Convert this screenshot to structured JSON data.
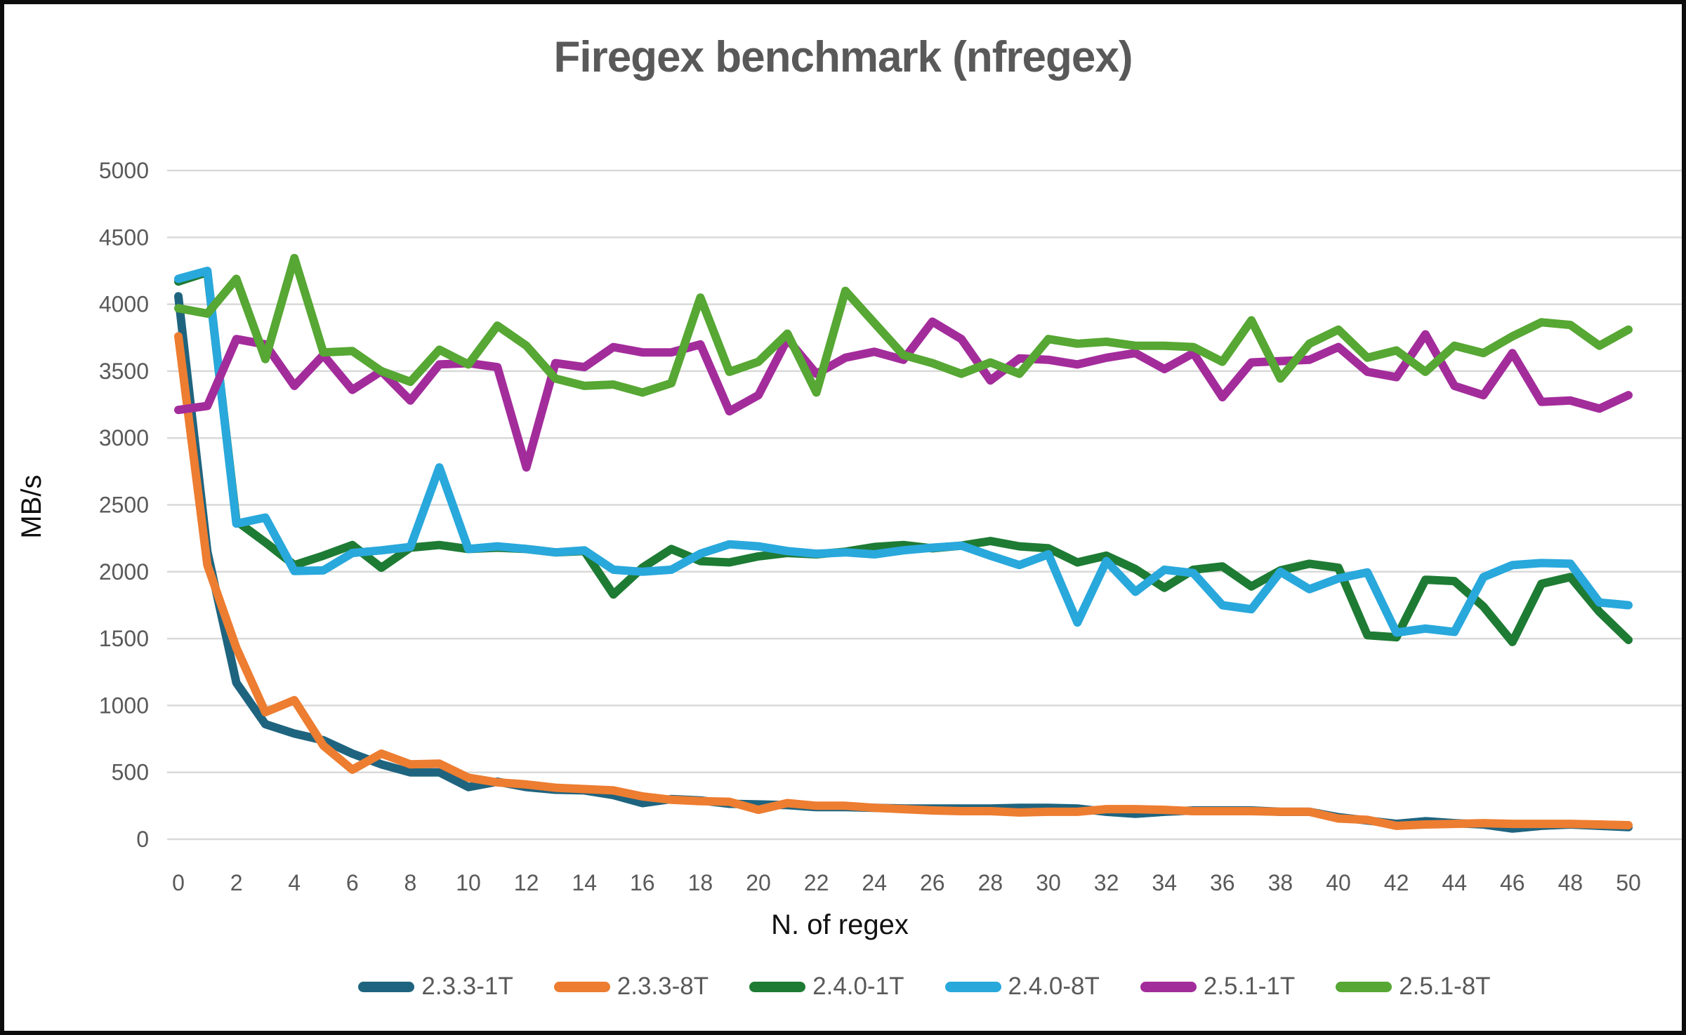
{
  "title": "Firegex benchmark (nfregex)",
  "chart_data": {
    "type": "line",
    "title": "Firegex benchmark (nfregex)",
    "xlabel": "N. of regex",
    "ylabel": "MB/s",
    "xlim": [
      0,
      50
    ],
    "x_tick_step": 2,
    "ylim": [
      0,
      5000
    ],
    "y_tick_step": 500,
    "grid": true,
    "legend_position": "bottom",
    "grid_color": "#D9D9D9",
    "tick_label_color": "#595959",
    "axis_title_color": "#111111",
    "x": [
      0,
      1,
      2,
      3,
      4,
      5,
      6,
      7,
      8,
      9,
      10,
      11,
      12,
      13,
      14,
      15,
      16,
      17,
      18,
      19,
      20,
      21,
      22,
      23,
      24,
      25,
      26,
      27,
      28,
      29,
      30,
      31,
      32,
      33,
      34,
      35,
      36,
      37,
      38,
      39,
      40,
      41,
      42,
      43,
      44,
      45,
      46,
      47,
      48,
      49,
      50
    ],
    "series": [
      {
        "name": "2.3.3-1T",
        "color": "#1F647F",
        "values": [
          4060,
          2150,
          1170,
          860,
          790,
          740,
          640,
          560,
          500,
          500,
          390,
          430,
          390,
          370,
          365,
          330,
          270,
          300,
          290,
          265,
          260,
          255,
          240,
          240,
          235,
          230,
          230,
          230,
          230,
          235,
          235,
          230,
          205,
          190,
          205,
          215,
          215,
          215,
          205,
          205,
          165,
          140,
          115,
          135,
          120,
          110,
          80,
          100,
          110,
          100,
          90
        ]
      },
      {
        "name": "2.3.3-8T",
        "color": "#ED7D31",
        "values": [
          3760,
          2050,
          1430,
          950,
          1040,
          700,
          520,
          640,
          560,
          565,
          460,
          425,
          410,
          385,
          375,
          365,
          320,
          295,
          285,
          280,
          220,
          270,
          250,
          250,
          235,
          225,
          215,
          210,
          210,
          200,
          205,
          205,
          225,
          225,
          220,
          210,
          210,
          210,
          205,
          205,
          155,
          145,
          100,
          110,
          115,
          120,
          115,
          115,
          115,
          110,
          105
        ]
      },
      {
        "name": "2.4.0-1T",
        "color": "#1E7B34",
        "values": [
          4170,
          4240,
          2380,
          2220,
          2050,
          2120,
          2200,
          2030,
          2180,
          2200,
          2170,
          2180,
          2170,
          2145,
          2155,
          1830,
          2030,
          2170,
          2080,
          2070,
          2115,
          2140,
          2130,
          2150,
          2185,
          2200,
          2175,
          2195,
          2230,
          2190,
          2175,
          2070,
          2120,
          2020,
          1880,
          2015,
          2040,
          1890,
          2010,
          2060,
          2030,
          1525,
          1510,
          1940,
          1930,
          1740,
          1475,
          1910,
          1960,
          1700,
          1490
        ]
      },
      {
        "name": "2.4.0-8T",
        "color": "#29A8DC",
        "values": [
          4190,
          4250,
          2360,
          2405,
          2005,
          2010,
          2140,
          2160,
          2185,
          2780,
          2170,
          2190,
          2170,
          2145,
          2160,
          2015,
          2000,
          2015,
          2135,
          2205,
          2190,
          2155,
          2135,
          2145,
          2130,
          2160,
          2180,
          2195,
          2120,
          2050,
          2130,
          1620,
          2080,
          1850,
          2015,
          1990,
          1750,
          1720,
          2000,
          1870,
          1950,
          1995,
          1545,
          1575,
          1550,
          1960,
          2050,
          2065,
          2060,
          1770,
          1750
        ]
      },
      {
        "name": "2.5.1-1T",
        "color": "#A32C9B",
        "values": [
          3210,
          3240,
          3740,
          3700,
          3390,
          3620,
          3360,
          3500,
          3280,
          3550,
          3560,
          3530,
          2780,
          3560,
          3530,
          3680,
          3640,
          3640,
          3700,
          3200,
          3320,
          3740,
          3480,
          3600,
          3645,
          3585,
          3870,
          3740,
          3430,
          3595,
          3585,
          3550,
          3600,
          3635,
          3515,
          3635,
          3305,
          3565,
          3575,
          3585,
          3680,
          3495,
          3455,
          3775,
          3390,
          3320,
          3635,
          3270,
          3280,
          3220,
          3320
        ]
      },
      {
        "name": "2.5.1-8T",
        "color": "#56A733",
        "values": [
          3970,
          3930,
          4190,
          3590,
          4345,
          3640,
          3650,
          3500,
          3420,
          3660,
          3550,
          3840,
          3690,
          3445,
          3390,
          3400,
          3340,
          3410,
          4050,
          3495,
          3570,
          3780,
          3340,
          4100,
          3860,
          3620,
          3560,
          3480,
          3565,
          3480,
          3740,
          3705,
          3720,
          3690,
          3690,
          3680,
          3570,
          3880,
          3445,
          3705,
          3810,
          3600,
          3655,
          3495,
          3690,
          3635,
          3760,
          3865,
          3845,
          3690,
          3810
        ]
      }
    ]
  }
}
